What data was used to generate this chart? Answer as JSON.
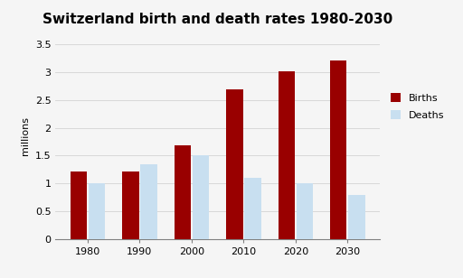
{
  "title": "Switzerland birth and death rates 1980-2030",
  "years": [
    1980,
    1990,
    2000,
    2010,
    2020,
    2030
  ],
  "births": [
    1.22,
    1.22,
    1.68,
    2.7,
    3.02,
    3.22
  ],
  "deaths": [
    1.0,
    1.35,
    1.5,
    1.1,
    1.0,
    0.8
  ],
  "birth_color": "#990000",
  "death_color": "#c8dff0",
  "ylabel": "millions",
  "ylim": [
    0,
    3.7
  ],
  "yticks": [
    0,
    0.5,
    1.0,
    1.5,
    2.0,
    2.5,
    3.0,
    3.5
  ],
  "ytick_labels": [
    "0",
    "0.5",
    "1",
    "1.5",
    "2",
    "2.5",
    "3",
    "3.5"
  ],
  "legend_labels": [
    "Births",
    "Deaths"
  ],
  "background_color": "#f5f5f5",
  "title_fontsize": 11,
  "bar_width": 0.32
}
